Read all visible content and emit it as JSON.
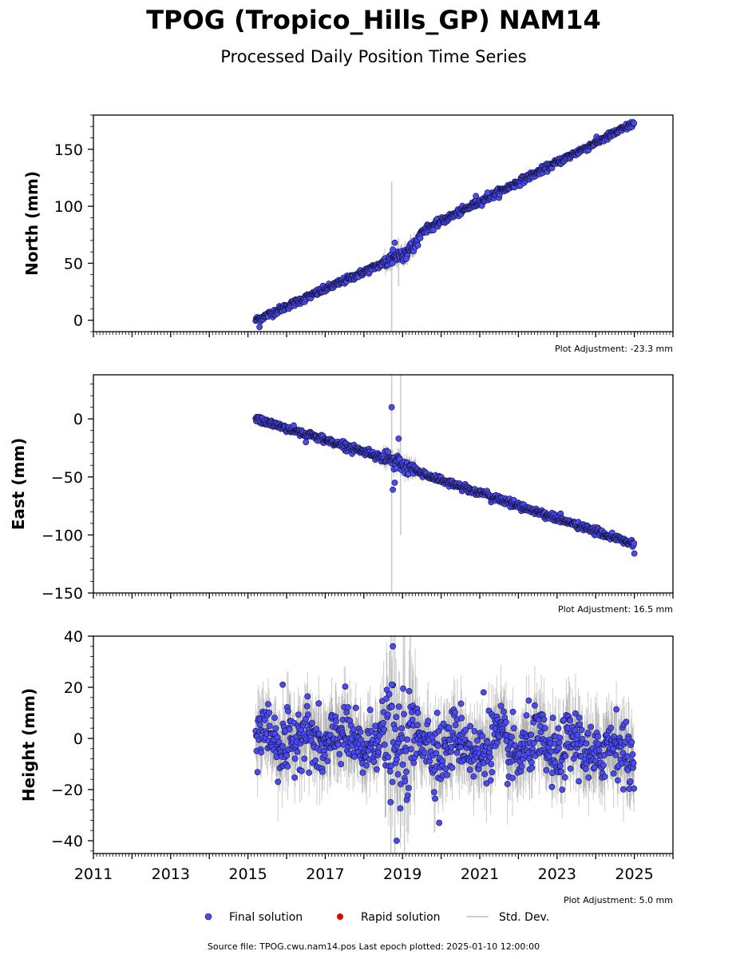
{
  "title": "TPOG (Tropico_Hills_GP) NAM14",
  "subtitle": "Processed Daily Position Time Series",
  "footer": "Source file: TPOG.cwu.nam14.pos  Last epoch plotted: 2025-01-10 12:00:00",
  "colors": {
    "final": "#4b4bf5",
    "rapid": "#e00000",
    "stddev": "#b4b4b4",
    "edge": "#111133"
  },
  "legend": {
    "final": "Final solution",
    "rapid": "Rapid solution",
    "stddev": "Std. Dev."
  },
  "chart_data": [
    {
      "type": "scatter",
      "ylabel": "North (mm)",
      "adjustment": "Plot Adjustment: -23.3 mm",
      "xlim": [
        2011,
        2026
      ],
      "ylim": [
        -10,
        180
      ],
      "yticks": [
        0,
        50,
        100,
        150
      ],
      "xticks": [
        2011,
        2013,
        2015,
        2017,
        2019,
        2021,
        2023,
        2025
      ],
      "series": [
        {
          "trend": [
            [
              2015.2,
              0
            ],
            [
              2018.5,
              50
            ],
            [
              2019.3,
              64
            ],
            [
              2019.5,
              78
            ],
            [
              2025.0,
              173
            ]
          ],
          "x_range": [
            2015.2,
            2025.0
          ],
          "noise_sd": 1.5,
          "outliers": [
            [
              2015.3,
              -6
            ],
            [
              2018.8,
              68
            ],
            [
              2018.75,
              62
            ],
            [
              2019.8,
              79
            ],
            [
              2020.9,
              109
            ],
            [
              2021.2,
              112
            ],
            [
              2019.1,
              54
            ]
          ],
          "spike_bars": [
            [
              2018.72,
              122,
              -10
            ],
            [
              2018.9,
              72,
              30
            ]
          ]
        }
      ]
    },
    {
      "type": "scatter",
      "ylabel": "East (mm)",
      "adjustment": "Plot Adjustment: 16.5 mm",
      "xlim": [
        2011,
        2026
      ],
      "ylim": [
        -150,
        38
      ],
      "yticks": [
        -150,
        -100,
        -50,
        0
      ],
      "xticks": [
        2011,
        2013,
        2015,
        2017,
        2019,
        2021,
        2023,
        2025
      ],
      "series": [
        {
          "trend": [
            [
              2015.2,
              0
            ],
            [
              2018.5,
              -33
            ],
            [
              2019.5,
              -47
            ],
            [
              2025.0,
              -108
            ]
          ],
          "x_range": [
            2015.2,
            2025.0
          ],
          "noise_sd": 1.5,
          "outliers": [
            [
              2018.72,
              10
            ],
            [
              2018.9,
              -17
            ],
            [
              2018.75,
              -61
            ],
            [
              2018.8,
              -55
            ],
            [
              2025.0,
              -116
            ],
            [
              2016.5,
              -20
            ]
          ],
          "spike_bars": [
            [
              2018.72,
              38,
              -150
            ],
            [
              2018.95,
              38,
              -100
            ]
          ]
        }
      ]
    },
    {
      "type": "scatter",
      "ylabel": "Height (mm)",
      "adjustment": "Plot Adjustment: 5.0 mm",
      "xlim": [
        2011,
        2026
      ],
      "ylim": [
        -45,
        40
      ],
      "yticks": [
        -40,
        -20,
        0,
        20,
        40
      ],
      "xticks": [
        2011,
        2013,
        2015,
        2017,
        2019,
        2021,
        2023,
        2025
      ],
      "series": [
        {
          "trend": [
            [
              2015.2,
              0
            ],
            [
              2025.0,
              -5
            ]
          ],
          "x_range": [
            2015.2,
            2025.0
          ],
          "noise_sd": 6,
          "outliers": [
            [
              2018.75,
              36
            ],
            [
              2018.72,
              21
            ],
            [
              2018.85,
              -40
            ],
            [
              2019.95,
              -33
            ],
            [
              2021.1,
              18
            ],
            [
              2015.9,
              21
            ],
            [
              2019.4,
              10
            ],
            [
              2019.9,
              10
            ]
          ],
          "spike_bars": [
            [
              2018.7,
              40,
              -45
            ],
            [
              2018.8,
              40,
              -45
            ],
            [
              2019.05,
              40,
              -45
            ],
            [
              2019.2,
              40,
              -30
            ]
          ]
        }
      ]
    }
  ]
}
